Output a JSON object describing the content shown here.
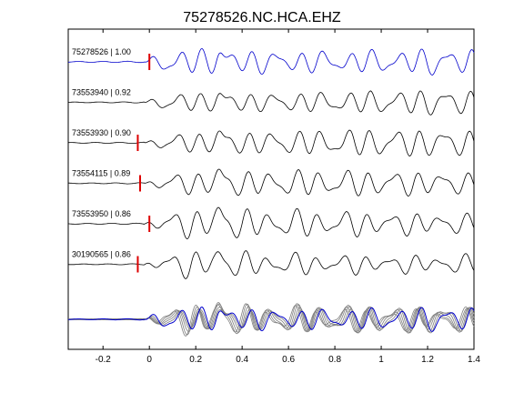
{
  "chart_data": {
    "type": "line",
    "title": "75278526.NC.HCA.EHZ",
    "xlabel": "",
    "ylabel": "",
    "xlim": [
      -0.35,
      1.4
    ],
    "x_ticks": [
      -0.2,
      0,
      0.2,
      0.4,
      0.6,
      0.8,
      1,
      1.2,
      1.4
    ],
    "x_tick_labels": [
      "-0.2",
      "0",
      "0.2",
      "0.4",
      "0.6",
      "0.8",
      "1",
      "1.2",
      "1.4"
    ],
    "grid": false,
    "colors": {
      "reference": "#0000cc",
      "trace": "#000000",
      "overlay": "#808080",
      "pick": "#dd0000",
      "axes": "#000000"
    },
    "series": [
      {
        "name": "75278526 | 1.00",
        "color": "#0000cc",
        "pick": 0.0,
        "amplitude": 1.0,
        "seed": 1
      },
      {
        "name": "73553940 | 0.92",
        "color": "#000000",
        "pick": null,
        "amplitude": 0.85,
        "seed": 2
      },
      {
        "name": "73553930 | 0.90",
        "color": "#000000",
        "pick": -0.05,
        "amplitude": 0.9,
        "seed": 3
      },
      {
        "name": "73554115 | 0.89",
        "color": "#000000",
        "pick": -0.04,
        "amplitude": 0.85,
        "seed": 4
      },
      {
        "name": "73553950 | 0.86",
        "color": "#000000",
        "pick": 0.0,
        "amplitude": 0.9,
        "seed": 5
      },
      {
        "name": "30190565 | 0.86",
        "color": "#000000",
        "pick": -0.05,
        "amplitude": 0.8,
        "seed": 6
      }
    ],
    "overlay": {
      "count": 6,
      "reference_color": "#0000cc",
      "other_color": "#808080"
    }
  }
}
